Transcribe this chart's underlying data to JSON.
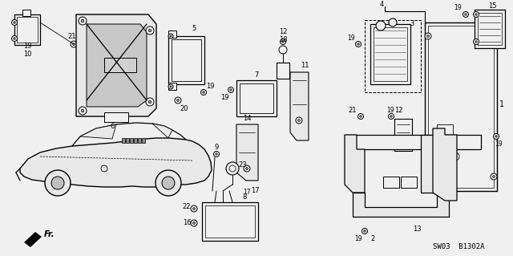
{
  "background_color": "#f5f5f5",
  "diagram_code": "SW03  B1302A",
  "lw": 0.8,
  "fs": 6.5
}
